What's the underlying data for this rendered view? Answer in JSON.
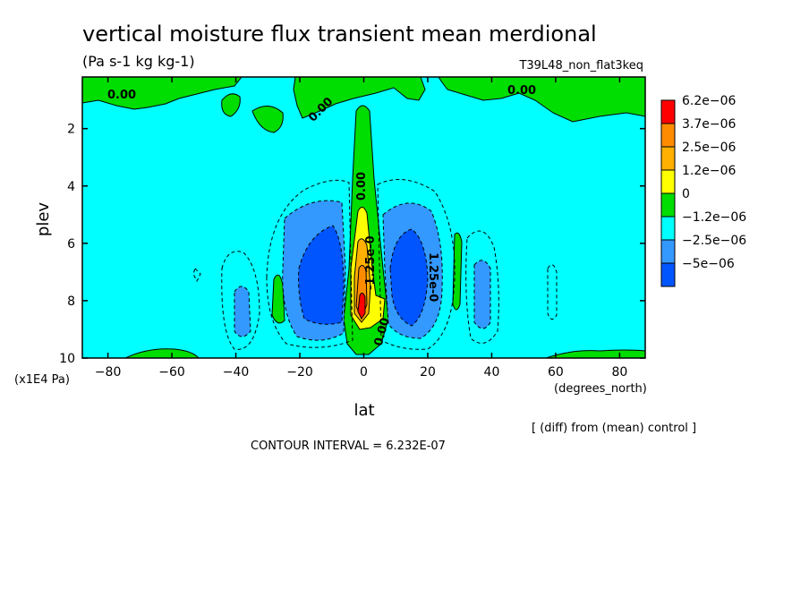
{
  "chart_data": {
    "type": "heatmap",
    "title": "vertical moisture flux transient mean merdional",
    "units": "(Pa s-1 kg kg-1)",
    "run_label": "T39L48_non_flat3keq",
    "xlabel": "lat",
    "xunit": "(degrees_north)",
    "ylabel": "plev",
    "yunit": "(x1E4 Pa)",
    "xlim": [
      -88,
      88
    ],
    "ylim": [
      10,
      0.2
    ],
    "xticks": [
      -80,
      -60,
      -40,
      -20,
      0,
      20,
      40,
      60,
      80
    ],
    "xtick_labels": [
      "-80",
      "-60",
      "-40",
      "-20",
      "0",
      "20",
      "40",
      "60",
      "80"
    ],
    "yticks": [
      2,
      4,
      6,
      8,
      10
    ],
    "ytick_labels": [
      "2",
      "4",
      "6",
      "8",
      "10"
    ],
    "levels": [
      -5e-06,
      -2.5e-06,
      -1.2e-06,
      0,
      1.2e-06,
      2.5e-06,
      3.7e-06,
      6.2e-06
    ],
    "colorbar_labels": [
      "6.2e-06",
      "3.7e-06",
      "2.5e-06",
      "1.2e-06",
      "0",
      "-1.2e-06",
      "-2.5e-06",
      "-5e-06"
    ],
    "colorbar_colors": [
      "#ff0000",
      "#ff8c00",
      "#ffb000",
      "#ffff00",
      "#00dd00",
      "#00ffff",
      "#3399ff",
      "#0055ff"
    ],
    "contour_labels": [
      "0.00",
      "0.00",
      "0.00",
      "0.00",
      "-1.25e-0",
      "1.25e-0",
      "0.00"
    ],
    "contour_interval_text": "CONTOUR INTERVAL = 6.232E-07",
    "diff_note": "[ (diff) from (mean) control ]"
  }
}
